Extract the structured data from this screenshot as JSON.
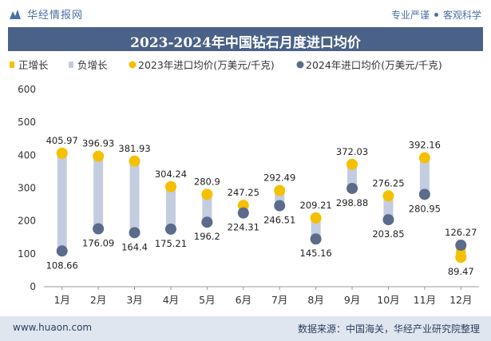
{
  "header": {
    "brand": "华经情报网",
    "slogan_left": "专业严谨",
    "slogan_right": "客观科学"
  },
  "footer": {
    "website": "www.huaon.com",
    "source": "数据来源：中国海关，华经产业研究院整理"
  },
  "colors": {
    "increase": "#f5c000",
    "decrease": "#c4cce0",
    "series_2023": "#f5c000",
    "series_2024": "#5a6b8c",
    "title_bg": "#4a6188"
  },
  "chart_data": {
    "type": "line",
    "title": "2023-2024年中国钻石月度进口均价",
    "categories": [
      "1月",
      "2月",
      "3月",
      "4月",
      "5月",
      "6月",
      "7月",
      "8月",
      "9月",
      "10月",
      "11月",
      "12月"
    ],
    "series": [
      {
        "name": "2023年进口均价(万美元/千克)",
        "values": [
          405.97,
          396.93,
          381.93,
          304.24,
          280.9,
          247.25,
          292.49,
          209.21,
          372.03,
          276.25,
          392.16,
          89.47
        ]
      },
      {
        "name": "2024年进口均价(万美元/千克)",
        "values": [
          108.66,
          176.09,
          164.4,
          175.21,
          196.2,
          224.31,
          246.51,
          145.16,
          298.88,
          203.85,
          280.95,
          126.27
        ]
      }
    ],
    "legend": [
      "正增长",
      "负增长",
      "2023年进口均价(万美元/千克)",
      "2024年进口均价(万美元/千克)"
    ],
    "ylim": [
      0,
      600
    ],
    "yticks": [
      0,
      100,
      200,
      300,
      400,
      500,
      600
    ],
    "legend_position": "top-left",
    "grid": false
  }
}
